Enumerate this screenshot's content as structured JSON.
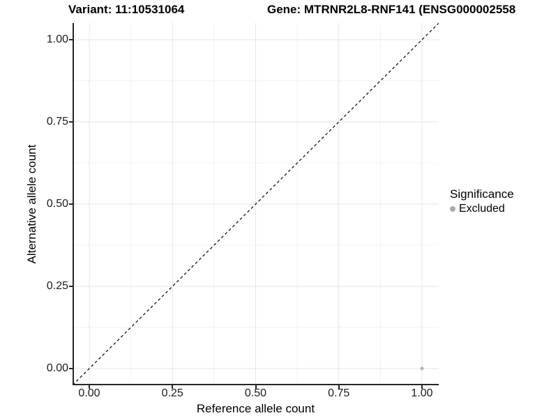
{
  "figure": {
    "title_left": "Variant: 11:10531064",
    "title_right": "Gene: MTRNR2L8-RNF141 (ENSG000002558"
  },
  "chart_data": {
    "type": "scatter",
    "title": "Variant: 11:10531064   Gene: MTRNR2L8-RNF141 (ENSG000002558",
    "xlabel": "Reference allele count",
    "ylabel": "Alternative allele count",
    "xlim": [
      -0.05,
      1.05
    ],
    "ylim": [
      -0.05,
      1.05
    ],
    "x_ticks": [
      {
        "value": 0.0,
        "label": "0.00"
      },
      {
        "value": 0.25,
        "label": "0.25"
      },
      {
        "value": 0.5,
        "label": "0.50"
      },
      {
        "value": 0.75,
        "label": "0.75"
      },
      {
        "value": 1.0,
        "label": "1.00"
      }
    ],
    "y_ticks": [
      {
        "value": 0.0,
        "label": "0.00"
      },
      {
        "value": 0.25,
        "label": "0.25"
      },
      {
        "value": 0.5,
        "label": "0.50"
      },
      {
        "value": 0.75,
        "label": "0.75"
      },
      {
        "value": 1.0,
        "label": "1.00"
      }
    ],
    "grid": {
      "major": [
        0.0,
        0.25,
        0.5,
        0.75,
        1.0
      ],
      "minor": [
        0.125,
        0.375,
        0.625,
        0.875
      ],
      "major_color": "#e6e6e6",
      "minor_color": "#f0f0f0"
    },
    "reference_line": {
      "style": "dashed",
      "from": [
        -0.05,
        -0.05
      ],
      "to": [
        1.05,
        1.05
      ],
      "color": "#000000"
    },
    "series": [
      {
        "name": "Excluded",
        "color": "#b3b3b3",
        "points": [
          {
            "x": 1.0,
            "y": 0.0
          }
        ]
      }
    ],
    "legend": {
      "position": "right",
      "title": "Significance",
      "items": [
        {
          "label": "Excluded",
          "color": "#aaaaaa"
        }
      ]
    },
    "axis_color": "#262626",
    "background": "#ffffff"
  }
}
